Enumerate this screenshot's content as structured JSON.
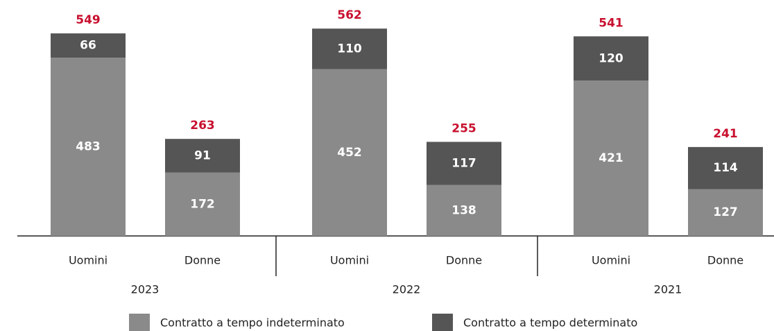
{
  "chart_data": {
    "type": "stacked_bar",
    "groups": [
      "2023",
      "2022",
      "2021"
    ],
    "categories": [
      "Uomini",
      "Donne",
      "Uomini",
      "Donne",
      "Uomini",
      "Donne"
    ],
    "series": [
      {
        "name": "Contratto a tempo indeterminato",
        "color": "#8a8a8a",
        "values": [
          483,
          172,
          452,
          138,
          421,
          127
        ]
      },
      {
        "name": "Contratto a tempo determinato",
        "color": "#555555",
        "values": [
          66,
          91,
          110,
          117,
          120,
          114
        ]
      }
    ],
    "totals": [
      549,
      263,
      562,
      255,
      541,
      241
    ],
    "totals_color": "#c8102e",
    "ylim": [
      0,
      600
    ]
  }
}
